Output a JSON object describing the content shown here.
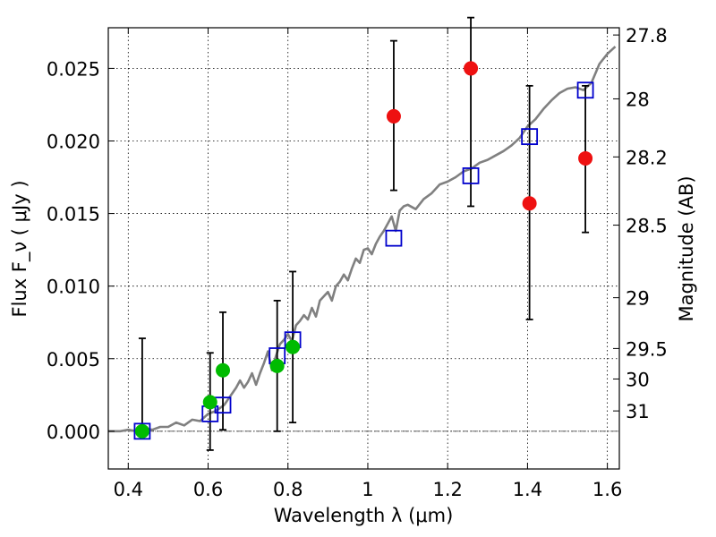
{
  "chart_data": {
    "type": "scatter",
    "xlabel": "Wavelength λ (μm)",
    "ylabel": "Flux F_ν ( μJy )",
    "ylabel_right": "Magnitude (AB)",
    "xlim": [
      0.35,
      1.63
    ],
    "ylim": [
      -0.0026,
      0.0278
    ],
    "grid": true,
    "x_ticks": [
      0.4,
      0.6,
      0.8,
      1.0,
      1.2,
      1.4,
      1.6
    ],
    "x_tick_labels": [
      "0.4",
      "0.6",
      "0.8",
      "1",
      "1.2",
      "1.4",
      "1.6"
    ],
    "y_ticks": [
      0.0,
      0.005,
      0.01,
      0.015,
      0.02,
      0.025
    ],
    "y_tick_labels": [
      "0.000",
      "0.005",
      "0.010",
      "0.015",
      "0.020",
      "0.025"
    ],
    "right_ticks": [
      {
        "label": "27.8",
        "flux": 0.0273
      },
      {
        "label": "28",
        "flux": 0.0229
      },
      {
        "label": "28.2",
        "flux": 0.0189
      },
      {
        "label": "28.5",
        "flux": 0.0142
      },
      {
        "label": "29",
        "flux": 0.0092
      },
      {
        "label": "29.5",
        "flux": 0.0057
      },
      {
        "label": "30",
        "flux": 0.0036
      },
      {
        "label": "31",
        "flux": 0.0014
      }
    ],
    "colors": {
      "model": "#808080",
      "synthetic": "#0000cc",
      "detection": "#00bb00",
      "upper": "#ee1111",
      "errorbar": "#000000"
    },
    "model_spectrum": {
      "x": [
        0.35,
        0.38,
        0.4,
        0.42,
        0.44,
        0.46,
        0.48,
        0.5,
        0.52,
        0.54,
        0.56,
        0.58,
        0.6,
        0.62,
        0.64,
        0.65,
        0.66,
        0.67,
        0.68,
        0.69,
        0.7,
        0.71,
        0.72,
        0.73,
        0.74,
        0.75,
        0.76,
        0.77,
        0.78,
        0.79,
        0.8,
        0.81,
        0.82,
        0.83,
        0.84,
        0.85,
        0.86,
        0.87,
        0.88,
        0.89,
        0.9,
        0.91,
        0.92,
        0.93,
        0.94,
        0.95,
        0.96,
        0.97,
        0.98,
        0.99,
        1.0,
        1.01,
        1.02,
        1.03,
        1.04,
        1.05,
        1.06,
        1.07,
        1.08,
        1.09,
        1.1,
        1.12,
        1.14,
        1.16,
        1.18,
        1.2,
        1.22,
        1.24,
        1.26,
        1.28,
        1.3,
        1.32,
        1.34,
        1.36,
        1.38,
        1.4,
        1.42,
        1.44,
        1.46,
        1.48,
        1.5,
        1.52,
        1.54,
        1.56,
        1.58,
        1.6,
        1.62
      ],
      "y": [
        0.0,
        0.0,
        0.0001,
        0.0,
        0.0002,
        0.0001,
        0.0003,
        0.0003,
        0.0006,
        0.0004,
        0.0008,
        0.0007,
        0.0012,
        0.0014,
        0.0018,
        0.0022,
        0.0026,
        0.003,
        0.0035,
        0.003,
        0.0034,
        0.004,
        0.0032,
        0.004,
        0.0047,
        0.0055,
        0.0042,
        0.0052,
        0.006,
        0.0063,
        0.0067,
        0.0062,
        0.0073,
        0.0076,
        0.008,
        0.0077,
        0.0085,
        0.0079,
        0.009,
        0.0093,
        0.0096,
        0.009,
        0.01,
        0.0103,
        0.0108,
        0.0104,
        0.0112,
        0.0119,
        0.0116,
        0.0125,
        0.0126,
        0.0122,
        0.0129,
        0.0134,
        0.0138,
        0.0143,
        0.0148,
        0.0138,
        0.0152,
        0.0155,
        0.0156,
        0.0153,
        0.016,
        0.0164,
        0.017,
        0.0172,
        0.0175,
        0.0179,
        0.0181,
        0.0185,
        0.0187,
        0.019,
        0.0193,
        0.0197,
        0.0202,
        0.021,
        0.0215,
        0.0222,
        0.0228,
        0.0233,
        0.0236,
        0.0237,
        0.0235,
        0.024,
        0.0253,
        0.026,
        0.0265
      ]
    },
    "series": [
      {
        "marker": "open-square",
        "points": [
          {
            "x": 0.435,
            "y": 0.0
          },
          {
            "x": 0.605,
            "y": 0.0012
          },
          {
            "x": 0.637,
            "y": 0.0018
          },
          {
            "x": 0.773,
            "y": 0.0052
          },
          {
            "x": 0.812,
            "y": 0.0063
          },
          {
            "x": 1.065,
            "y": 0.0133
          },
          {
            "x": 1.258,
            "y": 0.0176
          },
          {
            "x": 1.405,
            "y": 0.0203
          },
          {
            "x": 1.545,
            "y": 0.0235
          }
        ]
      },
      {
        "marker": "green-circle",
        "points": [
          {
            "x": 0.435,
            "y": 0.0,
            "err_low": 0.0,
            "err_high": 0.0064
          },
          {
            "x": 0.605,
            "y": 0.002,
            "err_low": 0.0033,
            "err_high": 0.0034
          },
          {
            "x": 0.637,
            "y": 0.0042,
            "err_low": 0.0041,
            "err_high": 0.004
          },
          {
            "x": 0.773,
            "y": 0.0045,
            "err_low": 0.0045,
            "err_high": 0.0045
          },
          {
            "x": 0.812,
            "y": 0.0058,
            "err_low": 0.0052,
            "err_high": 0.0052
          }
        ]
      },
      {
        "marker": "red-circle",
        "points": [
          {
            "x": 1.065,
            "y": 0.0217,
            "err_low": 0.0051,
            "err_high": 0.0052
          },
          {
            "x": 1.258,
            "y": 0.025,
            "err_low": 0.0095,
            "err_high": 0.0035
          },
          {
            "x": 1.405,
            "y": 0.0157,
            "err_low": 0.008,
            "err_high": 0.0081
          },
          {
            "x": 1.545,
            "y": 0.0188,
            "err_low": 0.0051,
            "err_high": 0.005
          }
        ]
      }
    ]
  }
}
